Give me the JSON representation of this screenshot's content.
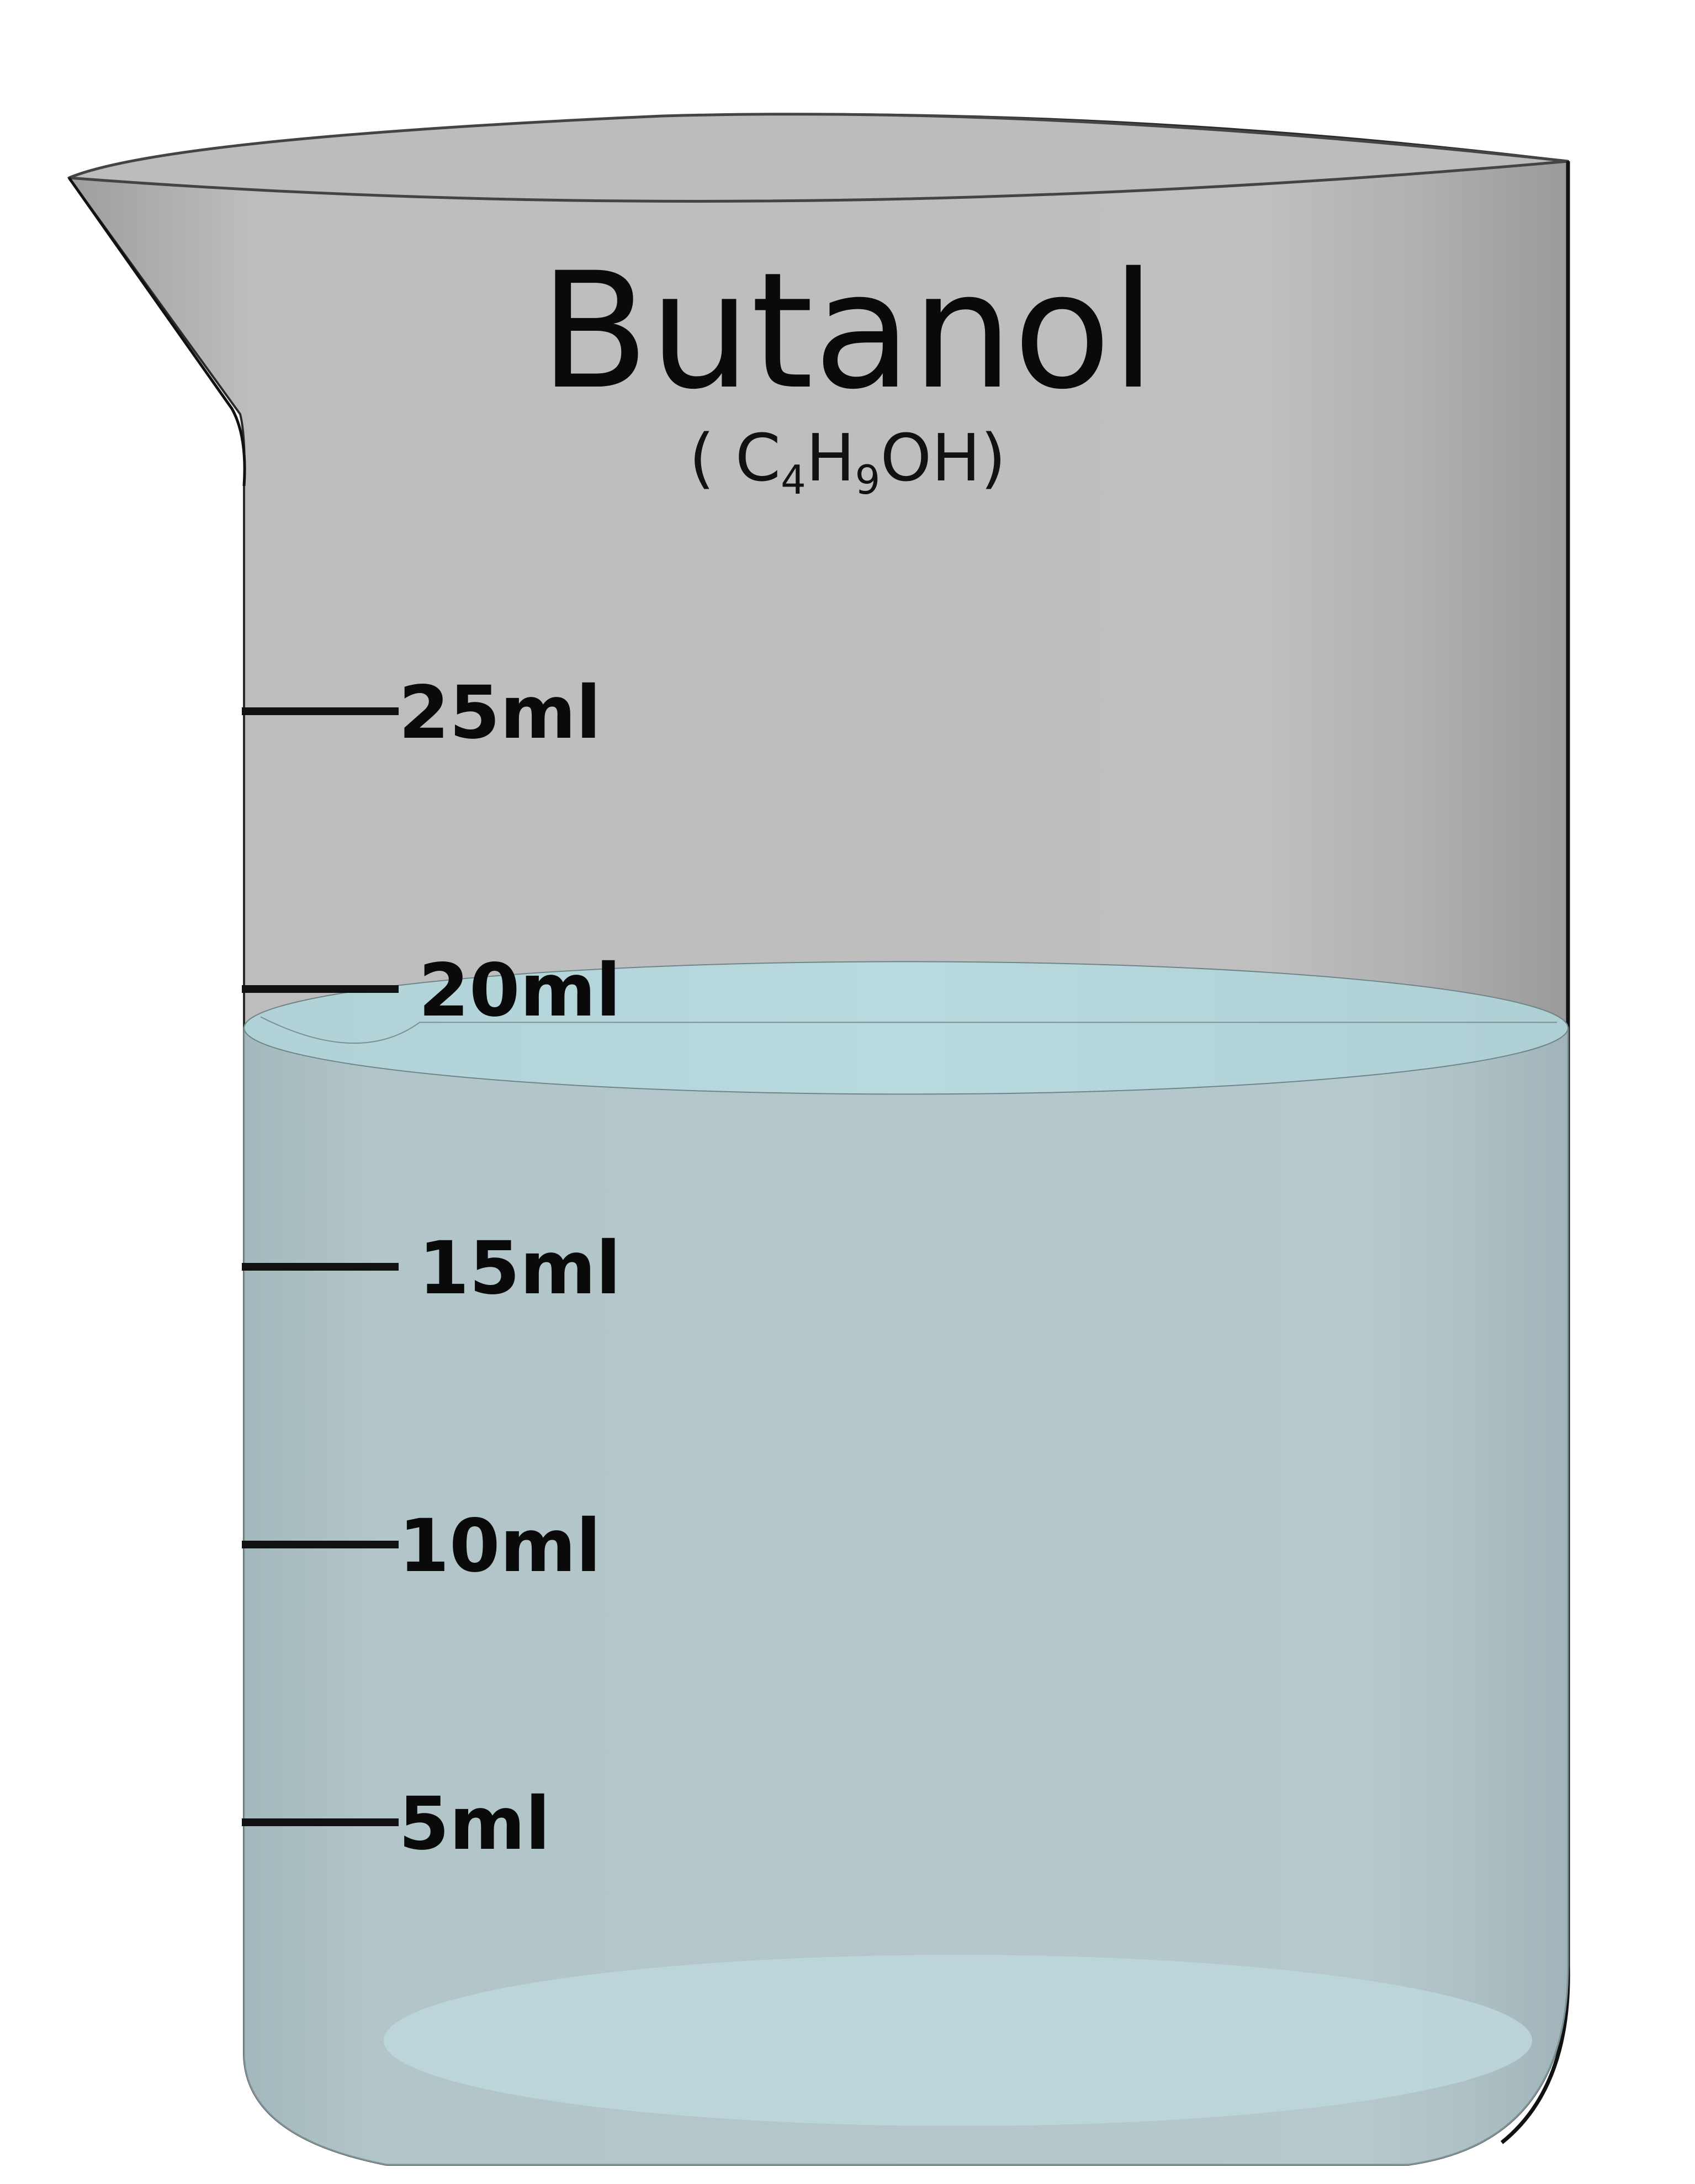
{
  "label": {
    "title": "Butanol",
    "formula": {
      "open": "( ",
      "c": "C",
      "c_sub": "4",
      "h": "H",
      "h_sub": "9",
      "rest": "OH)"
    }
  },
  "scale": {
    "marks": [
      {
        "value": 25,
        "text": "25ml"
      },
      {
        "value": 20,
        "text": "20ml"
      },
      {
        "value": 15,
        "text": "15ml"
      },
      {
        "value": 10,
        "text": "10ml"
      },
      {
        "value": 5,
        "text": "5ml"
      }
    ]
  },
  "liquid": {
    "level_ml": 19.3
  },
  "colors": {
    "glass_mid": "#bdbdbd",
    "glass_edge": "#9a9a9a",
    "liquid_mid": "#b4c7cb",
    "liquid_edge": "#a2b6bb",
    "liquid_surface": "#b7d8dd",
    "tick": "#111111"
  }
}
